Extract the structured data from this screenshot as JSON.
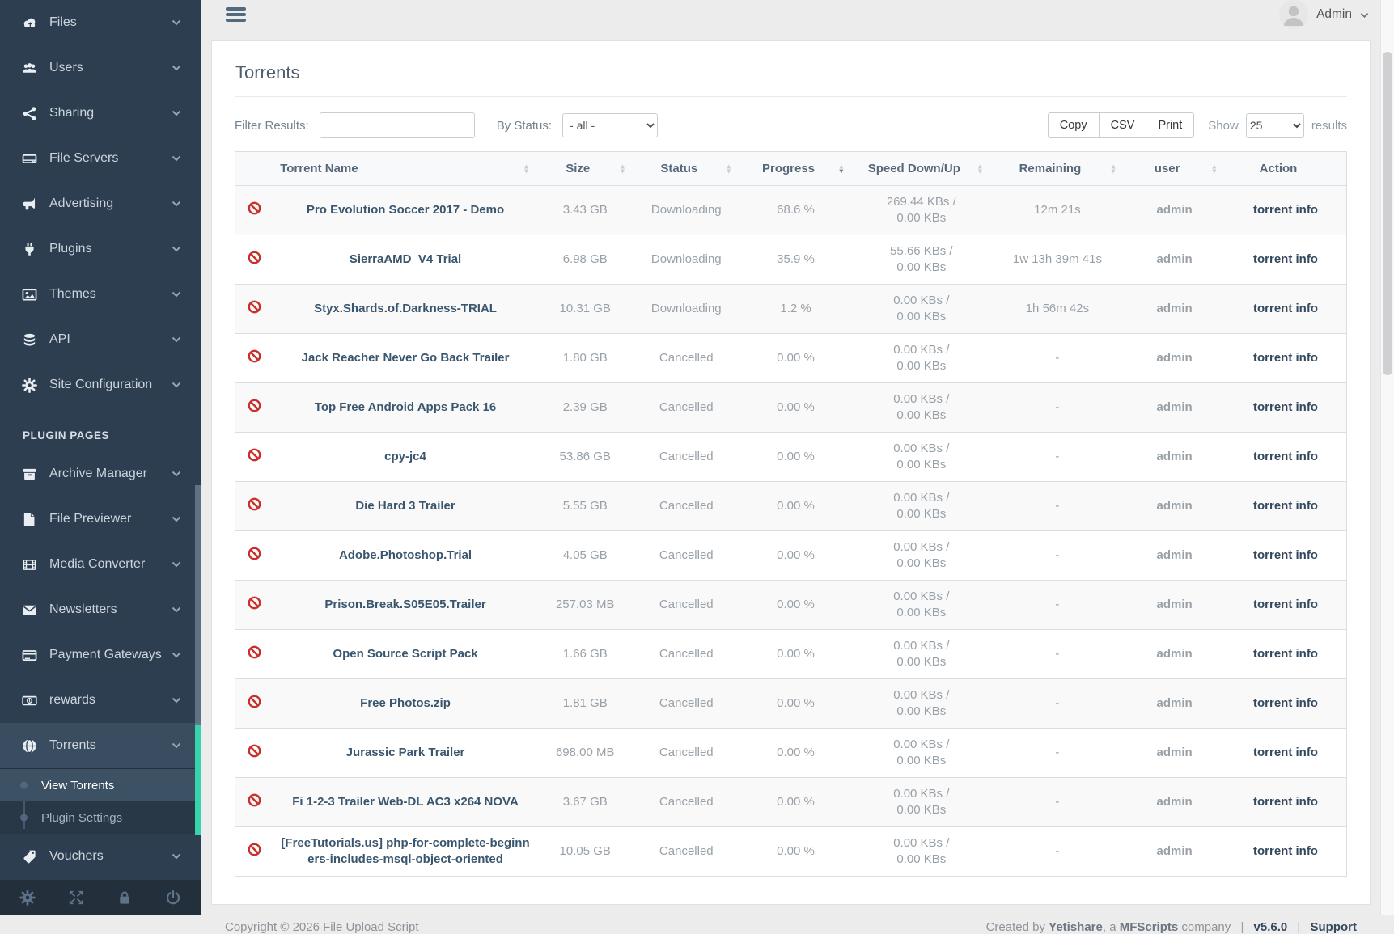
{
  "colors": {
    "sidebar_bg": "#2d3e50",
    "accent_teal": "#35d4ad",
    "danger_red": "#c9302c",
    "link_dark": "#34495e"
  },
  "sidebar": {
    "main_items": [
      {
        "icon": "cloud-upload-icon",
        "label": "Files"
      },
      {
        "icon": "users-icon",
        "label": "Users"
      },
      {
        "icon": "share-icon",
        "label": "Sharing"
      },
      {
        "icon": "hdd-icon",
        "label": "File Servers"
      },
      {
        "icon": "bullhorn-icon",
        "label": "Advertising"
      },
      {
        "icon": "plug-icon",
        "label": "Plugins"
      },
      {
        "icon": "image-icon",
        "label": "Themes"
      },
      {
        "icon": "database-icon",
        "label": "API"
      },
      {
        "icon": "gear-icon",
        "label": "Site Configuration"
      }
    ],
    "plugin_pages_label": "PLUGIN PAGES",
    "plugin_items": [
      {
        "icon": "archive-icon",
        "label": "Archive Manager"
      },
      {
        "icon": "file-icon",
        "label": "File Previewer"
      },
      {
        "icon": "film-icon",
        "label": "Media Converter"
      },
      {
        "icon": "envelope-icon",
        "label": "Newsletters"
      },
      {
        "icon": "credit-card-icon",
        "label": "Payment Gateways"
      },
      {
        "icon": "money-icon",
        "label": "rewards"
      },
      {
        "icon": "globe-icon",
        "label": "Torrents",
        "active": true,
        "submenu": [
          {
            "label": "View Torrents",
            "active": true
          },
          {
            "label": "Plugin Settings",
            "active": false
          }
        ]
      },
      {
        "icon": "tags-icon",
        "label": "Vouchers"
      }
    ],
    "footer_icons": [
      "gear-icon",
      "expand-icon",
      "lock-icon",
      "power-icon"
    ]
  },
  "topbar": {
    "menu_icon": "hamburger-icon",
    "avatar_icon": "avatar-icon",
    "user_label": "Admin",
    "user_chevron_icon": "chevron-down-icon"
  },
  "page": {
    "title": "Torrents"
  },
  "filters": {
    "filter_label": "Filter Results:",
    "filter_value": "",
    "status_label": "By Status:",
    "status_value": "- all -",
    "export_buttons": [
      "Copy",
      "CSV",
      "Print"
    ],
    "show_label": "Show",
    "show_value": "25",
    "results_label": "results"
  },
  "table": {
    "sorted_column": "Progress",
    "sort_direction": "desc",
    "columns": [
      {
        "label": "Torrent Name",
        "sortable": true
      },
      {
        "label": "Size",
        "sortable": true
      },
      {
        "label": "Status",
        "sortable": true
      },
      {
        "label": "Progress",
        "sortable": true
      },
      {
        "label": "Speed Down/Up",
        "sortable": true
      },
      {
        "label": "Remaining",
        "sortable": true
      },
      {
        "label": "user",
        "sortable": true
      },
      {
        "label": "Action",
        "sortable": false
      }
    ],
    "rows": [
      {
        "name": "Pro Evolution Soccer 2017 - Demo",
        "size": "3.43 GB",
        "status": "Downloading",
        "progress": "68.6 %",
        "speed_down": "269.44 KBs",
        "speed_up": "0.00 KBs",
        "remaining": "12m 21s",
        "user": "admin",
        "action": "torrent info"
      },
      {
        "name": "SierraAMD_V4 Trial",
        "size": "6.98 GB",
        "status": "Downloading",
        "progress": "35.9 %",
        "speed_down": "55.66 KBs",
        "speed_up": "0.00 KBs",
        "remaining": "1w 13h 39m 41s",
        "user": "admin",
        "action": "torrent info"
      },
      {
        "name": "Styx.Shards.of.Darkness-TRIAL",
        "size": "10.31 GB",
        "status": "Downloading",
        "progress": "1.2 %",
        "speed_down": "0.00 KBs",
        "speed_up": "0.00 KBs",
        "remaining": "1h 56m 42s",
        "user": "admin",
        "action": "torrent info"
      },
      {
        "name": "Jack Reacher Never Go Back Trailer",
        "size": "1.80 GB",
        "status": "Cancelled",
        "progress": "0.00 %",
        "speed_down": "0.00 KBs",
        "speed_up": "0.00 KBs",
        "remaining": "-",
        "user": "admin",
        "action": "torrent info"
      },
      {
        "name": "Top Free Android Apps Pack 16",
        "size": "2.39 GB",
        "status": "Cancelled",
        "progress": "0.00 %",
        "speed_down": "0.00 KBs",
        "speed_up": "0.00 KBs",
        "remaining": "-",
        "user": "admin",
        "action": "torrent info"
      },
      {
        "name": "cpy-jc4",
        "size": "53.86 GB",
        "status": "Cancelled",
        "progress": "0.00 %",
        "speed_down": "0.00 KBs",
        "speed_up": "0.00 KBs",
        "remaining": "-",
        "user": "admin",
        "action": "torrent info"
      },
      {
        "name": "Die Hard 3 Trailer",
        "size": "5.55 GB",
        "status": "Cancelled",
        "progress": "0.00 %",
        "speed_down": "0.00 KBs",
        "speed_up": "0.00 KBs",
        "remaining": "-",
        "user": "admin",
        "action": "torrent info"
      },
      {
        "name": "Adobe.Photoshop.Trial",
        "size": "4.05 GB",
        "status": "Cancelled",
        "progress": "0.00 %",
        "speed_down": "0.00 KBs",
        "speed_up": "0.00 KBs",
        "remaining": "-",
        "user": "admin",
        "action": "torrent info"
      },
      {
        "name": "Prison.Break.S05E05.Trailer",
        "size": "257.03 MB",
        "status": "Cancelled",
        "progress": "0.00 %",
        "speed_down": "0.00 KBs",
        "speed_up": "0.00 KBs",
        "remaining": "-",
        "user": "admin",
        "action": "torrent info"
      },
      {
        "name": "Open Source Script Pack",
        "size": "1.66 GB",
        "status": "Cancelled",
        "progress": "0.00 %",
        "speed_down": "0.00 KBs",
        "speed_up": "0.00 KBs",
        "remaining": "-",
        "user": "admin",
        "action": "torrent info"
      },
      {
        "name": "Free Photos.zip",
        "size": "1.81 GB",
        "status": "Cancelled",
        "progress": "0.00 %",
        "speed_down": "0.00 KBs",
        "speed_up": "0.00 KBs",
        "remaining": "-",
        "user": "admin",
        "action": "torrent info"
      },
      {
        "name": "Jurassic Park Trailer",
        "size": "698.00 MB",
        "status": "Cancelled",
        "progress": "0.00 %",
        "speed_down": "0.00 KBs",
        "speed_up": "0.00 KBs",
        "remaining": "-",
        "user": "admin",
        "action": "torrent info"
      },
      {
        "name": "Fi 1-2-3 Trailer Web-DL AC3 x264 NOVA",
        "size": "3.67 GB",
        "status": "Cancelled",
        "progress": "0.00 %",
        "speed_down": "0.00 KBs",
        "speed_up": "0.00 KBs",
        "remaining": "-",
        "user": "admin",
        "action": "torrent info"
      },
      {
        "name": "[FreeTutorials.us] php-for-complete-beginners-includes-msql-object-oriented",
        "size": "10.05 GB",
        "status": "Cancelled",
        "progress": "0.00 %",
        "speed_down": "0.00 KBs",
        "speed_up": "0.00 KBs",
        "remaining": "-",
        "user": "admin",
        "action": "torrent info"
      }
    ]
  },
  "footer": {
    "copyright": "Copyright © 2026 File Upload Script",
    "created_by_prefix": "Created by",
    "vendor": "Yetishare",
    "connector": ", a",
    "company": "MFScripts",
    "company_suffix": "company",
    "separator": "|",
    "version": "v5.6.0",
    "support": "Support"
  }
}
